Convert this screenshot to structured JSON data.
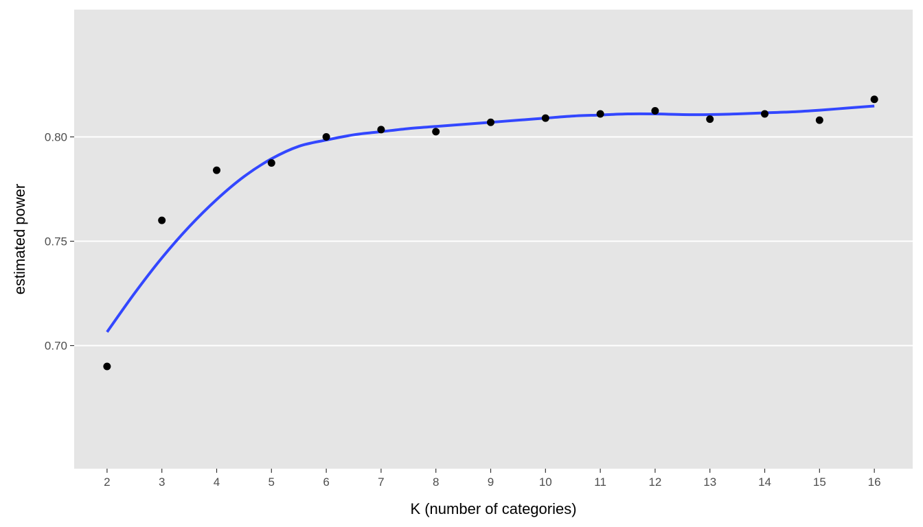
{
  "chart_data": {
    "type": "scatter",
    "title": "",
    "xlabel": "K (number of categories)",
    "ylabel": "estimated power",
    "x_ticks": [
      2,
      3,
      4,
      5,
      6,
      7,
      8,
      9,
      10,
      11,
      12,
      13,
      14,
      15,
      16
    ],
    "y_ticks": [
      "0.70",
      "0.75",
      "0.80"
    ],
    "xlim": [
      1.4,
      16.7
    ],
    "ylim": [
      0.641,
      0.861
    ],
    "grid": true,
    "points": {
      "x": [
        2,
        3,
        4,
        5,
        6,
        7,
        8,
        9,
        10,
        11,
        12,
        13,
        14,
        15,
        16
      ],
      "y": [
        0.69,
        0.76,
        0.784,
        0.7875,
        0.8,
        0.8035,
        0.8025,
        0.807,
        0.809,
        0.811,
        0.8125,
        0.8085,
        0.811,
        0.808,
        0.818
      ]
    },
    "smooth": {
      "x": [
        2,
        2.5,
        3,
        3.5,
        4,
        4.5,
        5,
        5.5,
        6,
        6.5,
        7,
        7.5,
        8,
        8.5,
        9,
        9.5,
        10,
        10.5,
        11,
        11.5,
        12,
        12.5,
        13,
        13.5,
        14,
        14.5,
        15,
        15.5,
        16
      ],
      "y": [
        0.7065,
        0.725,
        0.742,
        0.757,
        0.77,
        0.781,
        0.7895,
        0.7955,
        0.7985,
        0.801,
        0.8025,
        0.804,
        0.805,
        0.806,
        0.807,
        0.808,
        0.809,
        0.81,
        0.8105,
        0.811,
        0.811,
        0.8107,
        0.8107,
        0.811,
        0.8115,
        0.812,
        0.8128,
        0.8138,
        0.8148
      ]
    },
    "colors": {
      "panel": "#e5e5e5",
      "grid": "#ffffff",
      "points": "#000000",
      "line": "#3347ff"
    }
  }
}
